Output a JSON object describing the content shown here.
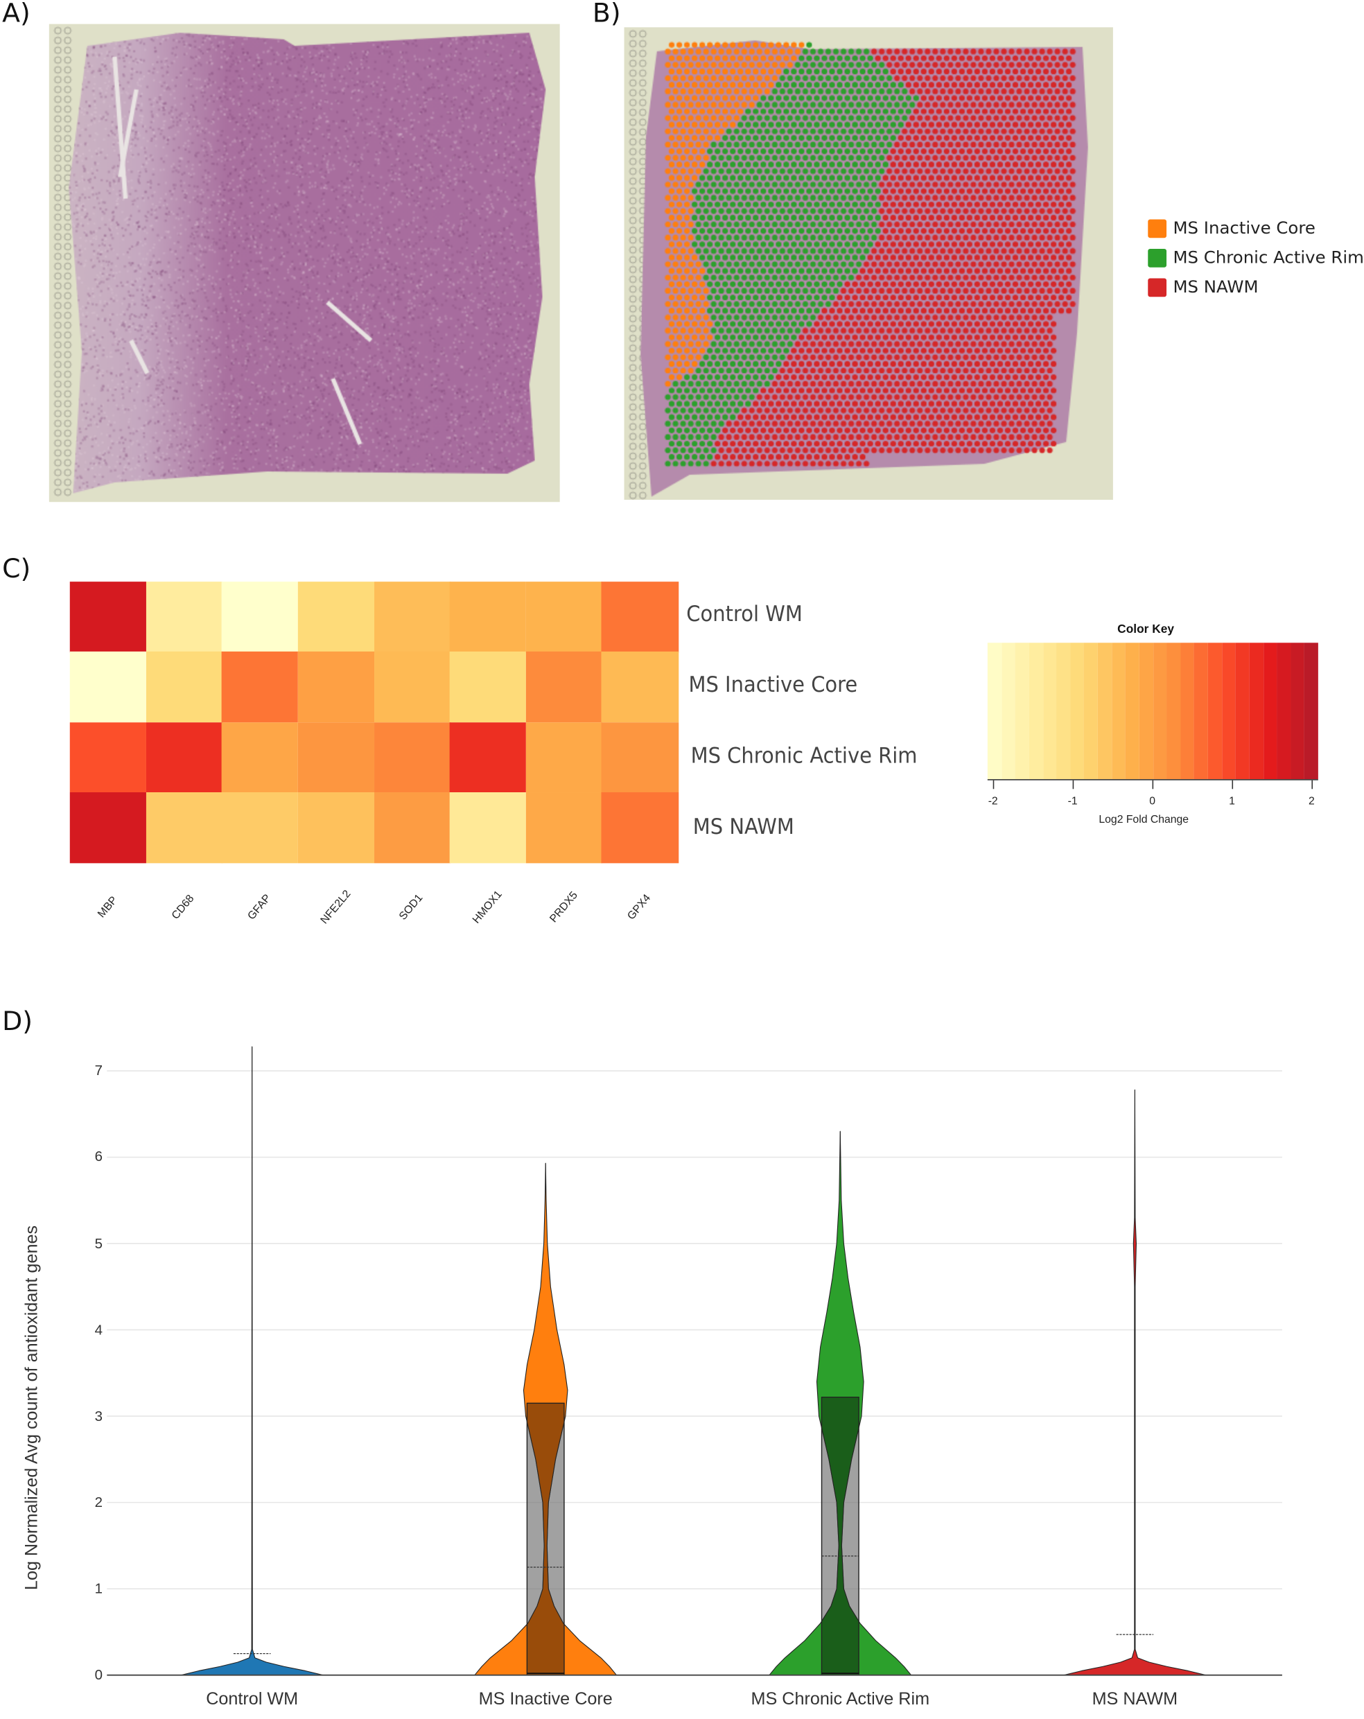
{
  "panels": {
    "a": "A)",
    "b": "B)",
    "c": "C)",
    "d": "D)"
  },
  "panel_b_legend": [
    {
      "label": "MS Inactive Core",
      "color": "#ff7f0e"
    },
    {
      "label": "MS Chronic Active Rim",
      "color": "#2ca02c"
    },
    {
      "label": "MS NAWM",
      "color": "#d62728"
    }
  ],
  "chart_data": [
    {
      "type": "heatmap",
      "title": "",
      "rows": [
        "Control WM",
        "MS Inactive Core",
        "MS Chronic Active Rim",
        "MS NAWM"
      ],
      "columns": [
        "MBP",
        "CD68",
        "GFAP",
        "NFE2L2",
        "SOD1",
        "HMOX1",
        "PRDX5",
        "GPX4"
      ],
      "values": [
        [
          1.6,
          -1.4,
          -2.0,
          -0.9,
          -0.45,
          -0.3,
          -0.3,
          0.5
        ],
        [
          -2.0,
          -0.9,
          0.5,
          0.0,
          -0.4,
          -0.9,
          0.3,
          -0.4
        ],
        [
          0.85,
          1.2,
          -0.1,
          0.15,
          0.35,
          1.2,
          -0.15,
          0.15
        ],
        [
          1.6,
          -0.65,
          -0.65,
          -0.5,
          0.05,
          -1.3,
          -0.15,
          0.5
        ]
      ],
      "color_key": {
        "title": "Color Key",
        "xlabel": "Log2 Fold Change",
        "range": [
          -2,
          2
        ],
        "ticks": [
          "-2",
          "-1",
          "0",
          "1",
          "2"
        ],
        "colors": [
          "#ffffcc",
          "#ffeda0",
          "#fed976",
          "#feb24c",
          "#fd8d3c",
          "#fc4e2a",
          "#e31a1c",
          "#b31b2a"
        ]
      }
    },
    {
      "type": "violin",
      "ylabel": "Log Normalized Avg count of antioxidant genes",
      "xlabel": "",
      "ylim": [
        0,
        7.3
      ],
      "yticks": [
        "0",
        "1",
        "2",
        "3",
        "4",
        "5",
        "6",
        "7"
      ],
      "grid": true,
      "categories": [
        "Control WM",
        "MS Inactive Core",
        "MS Chronic Active Rim",
        "MS NAWM"
      ],
      "series": [
        {
          "name": "Control WM",
          "color": "#1f77b4",
          "max": 7.28,
          "mean": 0.25,
          "box": null,
          "density_y": [
            0,
            0.05,
            0.1,
            0.15,
            0.2,
            0.3,
            7.28
          ],
          "density_w": [
            1.0,
            0.75,
            0.45,
            0.2,
            0.04,
            0.005,
            0
          ]
        },
        {
          "name": "MS Inactive Core",
          "color": "#ff7f0e",
          "max": 5.93,
          "mean": 1.25,
          "box": {
            "q1": 0.0,
            "median": 0.02,
            "q3": 3.15,
            "fill": "#994c0a"
          },
          "density_y": [
            0,
            0.1,
            0.2,
            0.4,
            0.6,
            0.8,
            1.0,
            1.5,
            2.0,
            2.5,
            3.0,
            3.3,
            3.6,
            4.0,
            4.5,
            5.0,
            5.5,
            5.93
          ],
          "density_w": [
            1.0,
            0.9,
            0.78,
            0.48,
            0.25,
            0.12,
            0.04,
            0.02,
            0.04,
            0.14,
            0.28,
            0.31,
            0.26,
            0.16,
            0.07,
            0.025,
            0.008,
            0
          ]
        },
        {
          "name": "MS Chronic Active Rim",
          "color": "#2ca02c",
          "max": 6.3,
          "mean": 1.38,
          "box": {
            "q1": 0.0,
            "median": 0.02,
            "q3": 3.22,
            "fill": "#1a5e1a"
          },
          "density_y": [
            0,
            0.1,
            0.2,
            0.4,
            0.6,
            0.8,
            1.0,
            1.5,
            2.0,
            2.5,
            3.0,
            3.4,
            3.8,
            4.2,
            4.6,
            5.0,
            5.5,
            6.3
          ],
          "density_w": [
            1.0,
            0.9,
            0.78,
            0.5,
            0.28,
            0.13,
            0.05,
            0.02,
            0.05,
            0.16,
            0.3,
            0.33,
            0.28,
            0.19,
            0.11,
            0.05,
            0.015,
            0
          ]
        },
        {
          "name": "MS NAWM",
          "color": "#d62728",
          "max": 6.78,
          "mean": 0.47,
          "box": null,
          "density_y": [
            0,
            0.05,
            0.1,
            0.15,
            0.2,
            0.3,
            4.5,
            5.0,
            5.3,
            6.78
          ],
          "density_w": [
            1.0,
            0.75,
            0.45,
            0.2,
            0.04,
            0.005,
            0.005,
            0.02,
            0.005,
            0
          ]
        }
      ]
    }
  ]
}
